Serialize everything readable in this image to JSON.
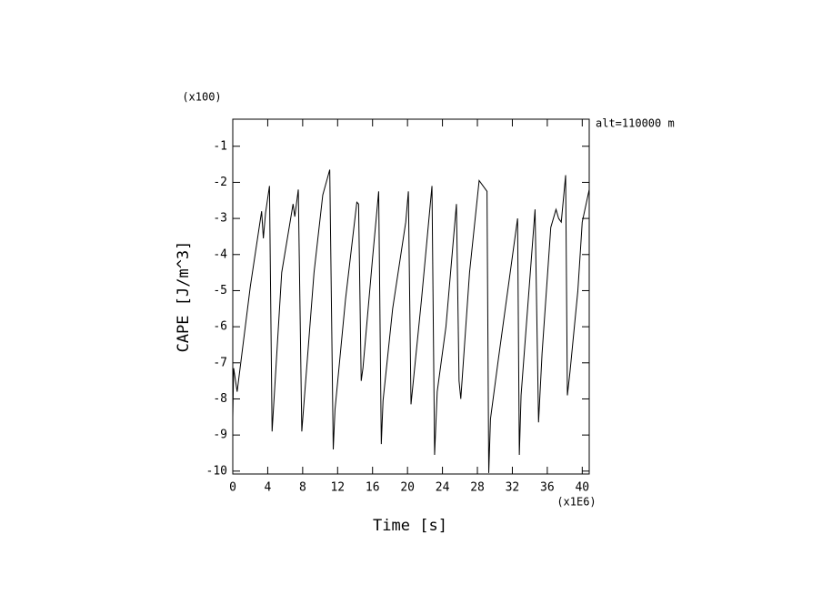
{
  "chart_data": {
    "type": "line",
    "x_label": "Time [s]",
    "y_label": "CAPE [J/m^3]",
    "x_multiplier": "(x1E6)",
    "y_multiplier": "(x100)",
    "annotation": "alt=110000 m",
    "xlim": [
      0,
      40.8
    ],
    "ylim": [
      -10.08,
      -0.25
    ],
    "xticks": [
      0,
      4,
      8,
      12,
      16,
      20,
      24,
      28,
      32,
      36,
      40
    ],
    "yticks": [
      -1,
      -2,
      -3,
      -4,
      -5,
      -6,
      -7,
      -8,
      -9,
      -10
    ],
    "series": [
      {
        "name": "CAPE",
        "color": "#000000",
        "x": [
          0,
          0.1,
          0.5,
          2,
          3.3,
          3.5,
          3.75,
          4.2,
          4.5,
          5.6,
          6.9,
          7.1,
          7.5,
          7.9,
          9.3,
          10.3,
          11.1,
          11.5,
          11.7,
          12.9,
          14.2,
          14.4,
          14.7,
          14.9,
          16,
          16.7,
          17,
          17.2,
          18.3,
          19.8,
          20.1,
          20.4,
          21.6,
          22.8,
          23.1,
          23.4,
          24.4,
          25.6,
          25.9,
          26.1,
          27.1,
          28.2,
          29.1,
          29.3,
          29.5,
          30.4,
          32.6,
          32.8,
          33,
          34.6,
          35,
          35.4,
          36.4,
          37,
          37.3,
          37.6,
          38.1,
          38.3,
          38.6,
          39.5,
          40,
          40.8
        ],
        "values": [
          -8.5,
          -7.15,
          -7.8,
          -4.9,
          -2.8,
          -3.55,
          -2.85,
          -2.1,
          -8.9,
          -4.5,
          -2.6,
          -2.95,
          -2.2,
          -8.9,
          -4.5,
          -2.35,
          -1.65,
          -9.4,
          -8.3,
          -5.25,
          -2.55,
          -2.6,
          -7.5,
          -7.15,
          -4.1,
          -2.25,
          -9.25,
          -8.05,
          -5.5,
          -3.1,
          -2.25,
          -8.15,
          -5.25,
          -2.1,
          -9.55,
          -7.8,
          -6,
          -2.6,
          -7.5,
          -8,
          -4.5,
          -1.95,
          -2.25,
          -10.05,
          -8.55,
          -6.9,
          -3,
          -9.55,
          -7.9,
          -2.75,
          -8.65,
          -6.75,
          -3.25,
          -2.75,
          -3,
          -3.1,
          -1.8,
          -7.9,
          -7.25,
          -5,
          -3.1,
          -2.2
        ]
      }
    ]
  }
}
